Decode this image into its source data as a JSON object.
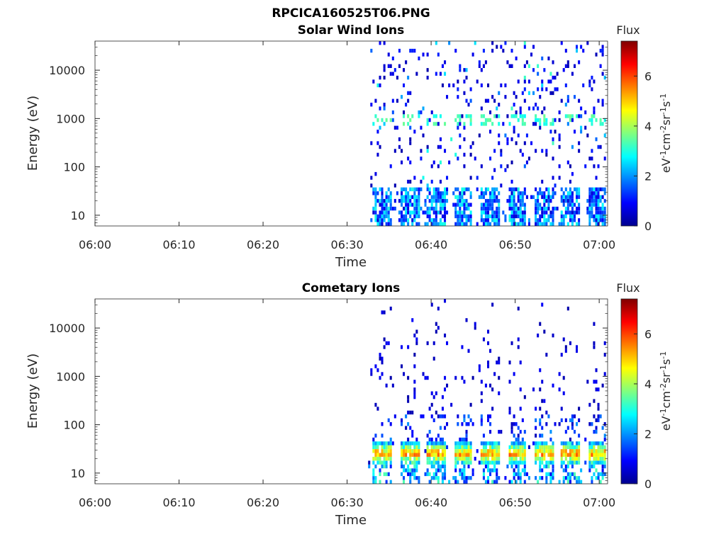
{
  "figure": {
    "title": "RPCICA160525T06.PNG"
  },
  "chart_data": [
    {
      "type": "heatmap",
      "title": "Solar Wind Ions",
      "xlabel": "Time",
      "ylabel": "Energy (eV)",
      "x_tick_labels": [
        "06:00",
        "06:10",
        "06:20",
        "06:30",
        "06:40",
        "06:50",
        "07:00"
      ],
      "x_range_minutes": [
        0,
        61
      ],
      "y_scale": "log",
      "y_tick_values": [
        10,
        100,
        1000,
        10000
      ],
      "y_tick_labels": [
        "10",
        "100",
        "1000",
        "10000"
      ],
      "ylim": [
        6,
        40000
      ],
      "data_start_minute": 32.5,
      "sweep_period_minutes": 3.2,
      "sweep_starts_minutes": [
        33,
        36.3,
        39.4,
        42.6,
        45.8,
        49,
        52.2,
        55.4,
        58.6
      ],
      "features": [
        {
          "name": "solar-wind-peak",
          "energy_ev": 900,
          "level": 3.2
        },
        {
          "name": "low-energy-band",
          "energy_range_ev": [
            15,
            35
          ],
          "level": 1.6
        }
      ],
      "colorbar": {
        "title": "Flux",
        "label": "eV⁻¹cm⁻²sr⁻¹s⁻¹",
        "tick_labels": [
          "0",
          "2",
          "4",
          "6"
        ],
        "range": [
          0,
          7.4
        ],
        "colormap": "jet"
      }
    },
    {
      "type": "heatmap",
      "title": "Cometary Ions",
      "xlabel": "Time",
      "ylabel": "Energy (eV)",
      "x_tick_labels": [
        "06:00",
        "06:10",
        "06:20",
        "06:30",
        "06:40",
        "06:50",
        "07:00"
      ],
      "x_range_minutes": [
        0,
        61
      ],
      "y_scale": "log",
      "y_tick_values": [
        10,
        100,
        1000,
        10000
      ],
      "y_tick_labels": [
        "10",
        "100",
        "1000",
        "10000"
      ],
      "ylim": [
        6,
        40000
      ],
      "data_start_minute": 32.5,
      "sweep_period_minutes": 3.2,
      "sweep_starts_minutes": [
        33,
        36.3,
        39.4,
        42.6,
        45.8,
        49,
        52.2,
        55.4,
        58.6
      ],
      "features": [
        {
          "name": "cometary-core",
          "energy_range_ev": [
            15,
            40
          ],
          "peak_ev": 25,
          "level": 5.8
        }
      ],
      "colorbar": {
        "title": "Flux",
        "label": "eV⁻¹cm⁻²sr⁻¹s⁻¹",
        "tick_labels": [
          "0",
          "2",
          "4",
          "6"
        ],
        "range": [
          0,
          7.4
        ],
        "colormap": "jet"
      }
    }
  ]
}
